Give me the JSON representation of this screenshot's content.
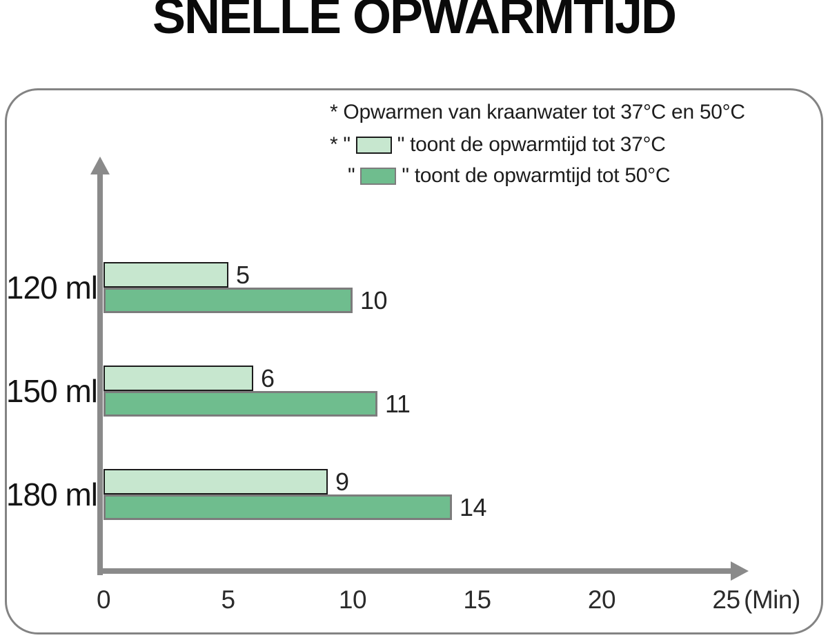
{
  "title": "SNELLE OPWARMTIJD",
  "legend": {
    "line1": "* Opwarmen van kraanwater tot 37°C en 50°C",
    "line2_prefix": "* \"",
    "line2_suffix": "\" toont de opwarmtijd tot 37°C",
    "line3_prefix": "\"",
    "line3_suffix": "\" toont de opwarmtijd tot 50°C"
  },
  "axis": {
    "unit_label": "(Min)"
  },
  "colors": {
    "light_green": "#c7e7cf",
    "dark_green": "#6fbd8e",
    "light_border": "#1b1b1b",
    "dark_border": "#7c7c7c",
    "axis_gray": "#8a8a8a",
    "panel_border": "#838383"
  },
  "chart_data": {
    "type": "bar",
    "orientation": "horizontal",
    "title": "SNELLE OPWARMTIJD",
    "categories": [
      "120 ml",
      "150 ml",
      "180 ml"
    ],
    "series": [
      {
        "name": "opwarmtijd tot 37°C",
        "values": [
          5,
          6,
          9
        ],
        "color": "#c7e7cf"
      },
      {
        "name": "opwarmtijd tot 50°C",
        "values": [
          10,
          11,
          14
        ],
        "color": "#6fbd8e"
      }
    ],
    "xlabel": "(Min)",
    "x_ticks": [
      0,
      5,
      10,
      15,
      20,
      25
    ],
    "xlim": [
      0,
      25
    ],
    "grid": false,
    "legend_position": "top-right",
    "annotations": [
      "* Opwarmen van kraanwater tot 37°C en 50°C",
      "* \"light green\" toont de opwarmtijd tot 37°C",
      "\"dark green\" toont de opwarmtijd tot 50°C"
    ]
  }
}
